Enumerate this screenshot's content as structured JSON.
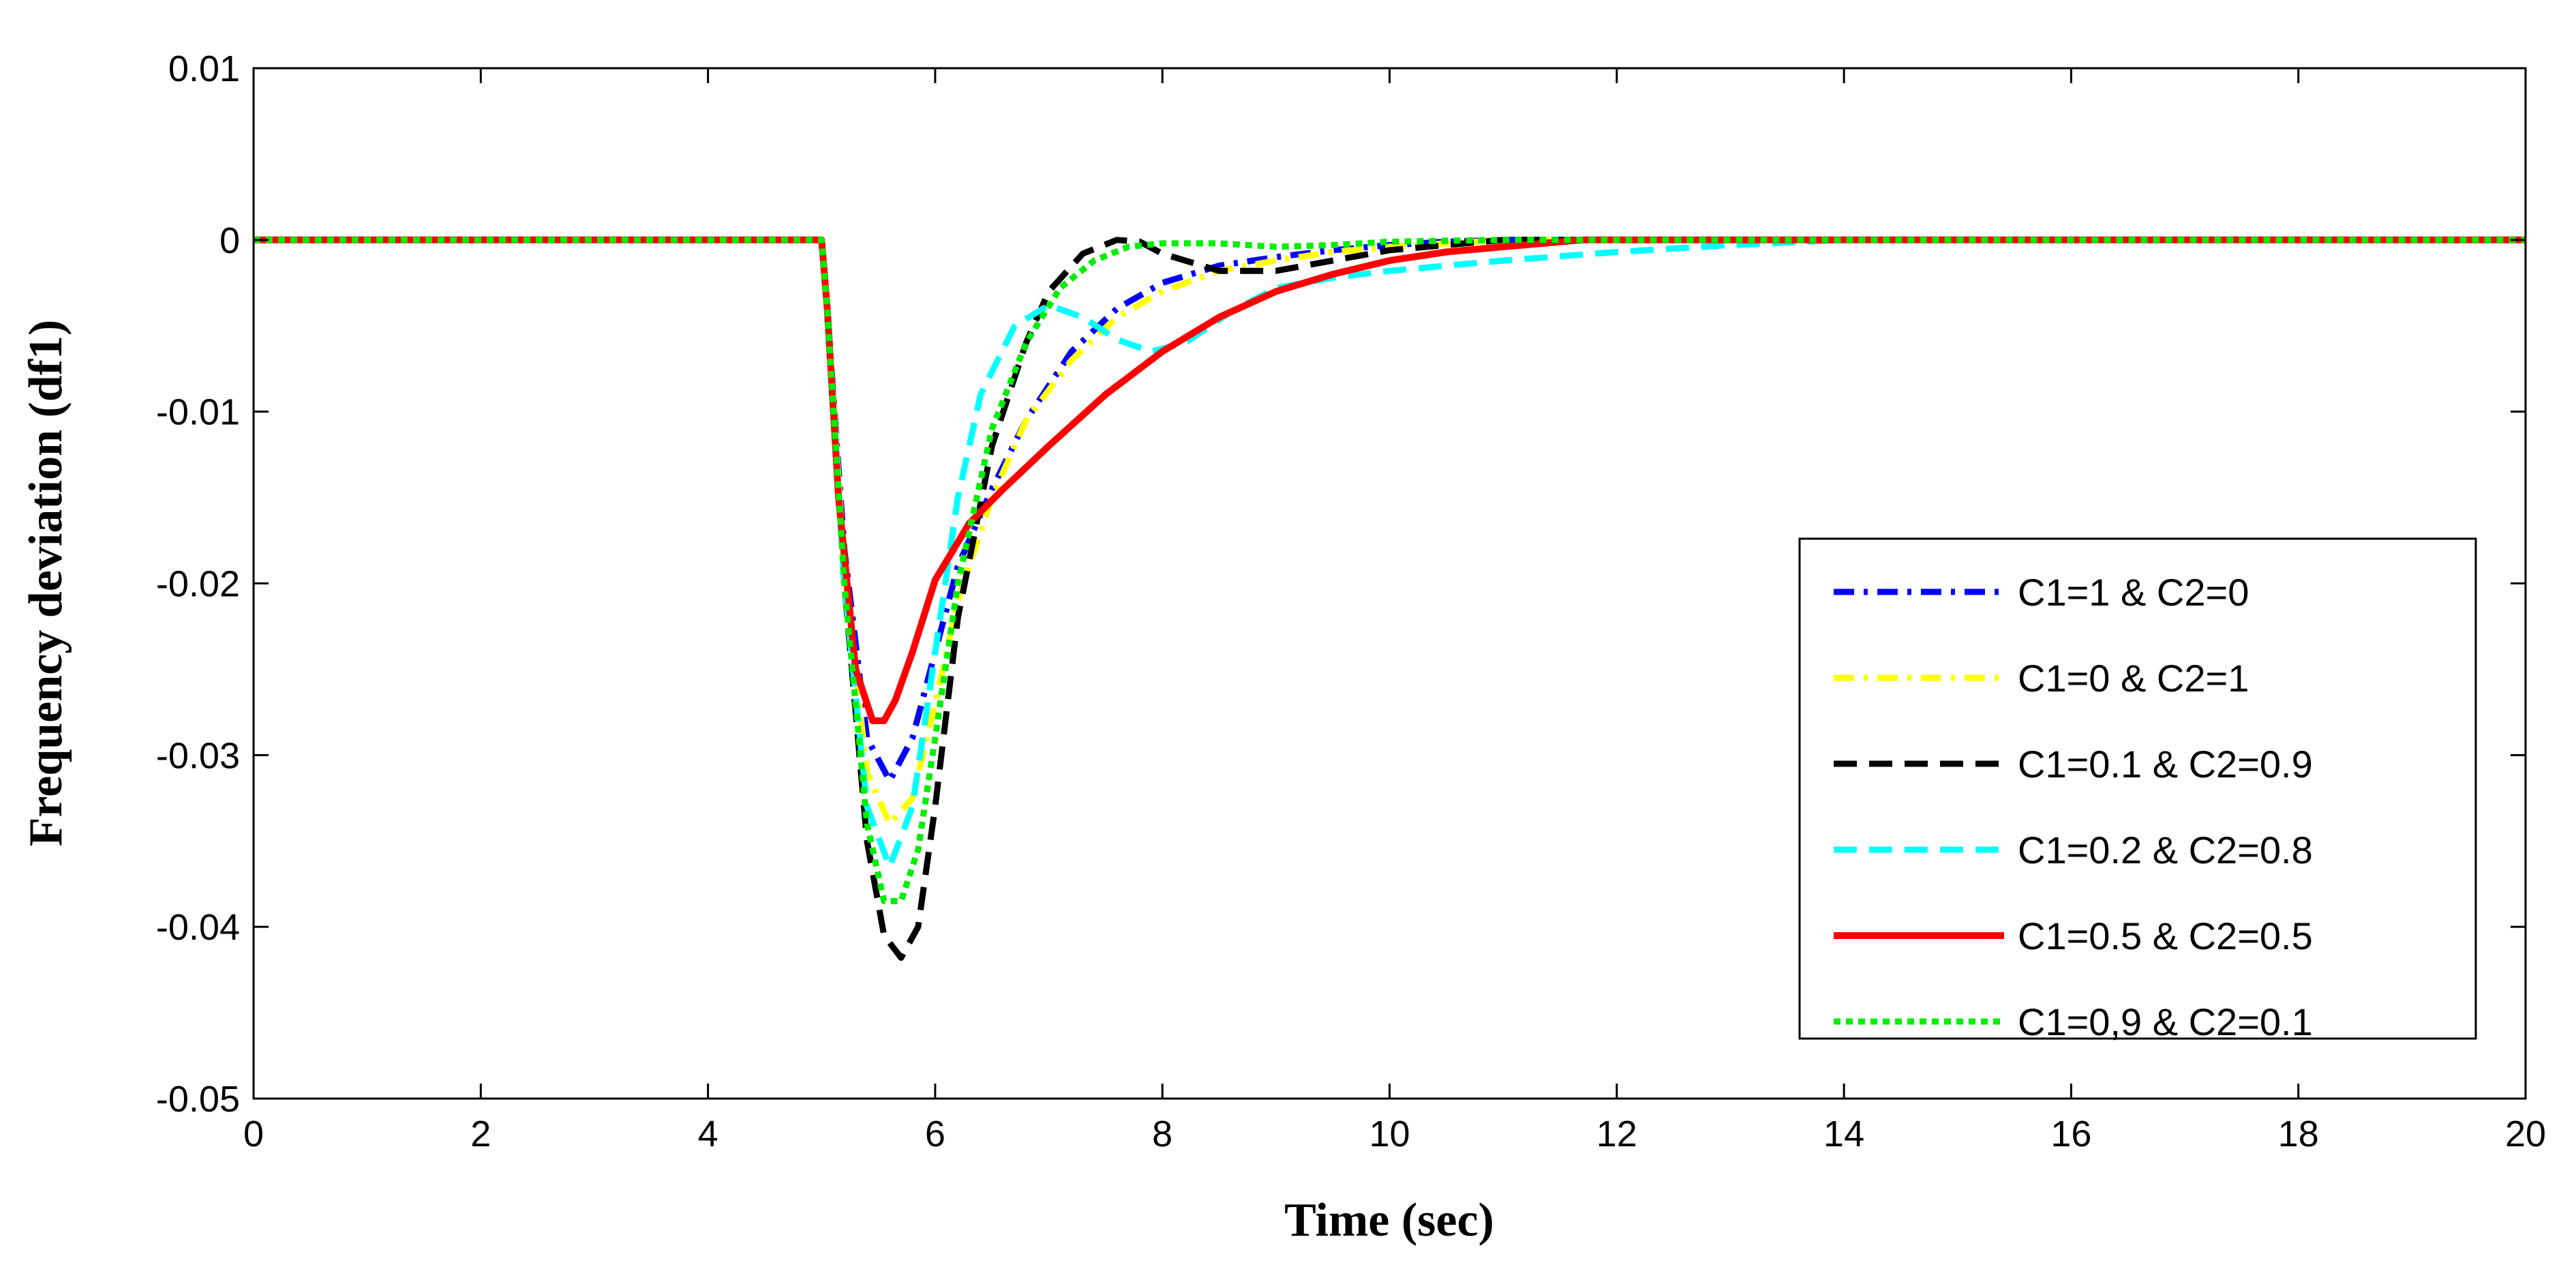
{
  "chart_data": {
    "type": "line",
    "title": "",
    "xlabel": "Time (sec)",
    "ylabel": "Frequency deviation (df1)",
    "xlim": [
      0,
      20
    ],
    "ylim": [
      -0.05,
      0.01
    ],
    "xticks": [
      0,
      2,
      4,
      6,
      8,
      10,
      12,
      14,
      16,
      18,
      20
    ],
    "xtick_labels": [
      "0",
      "2",
      "4",
      "6",
      "8",
      "10",
      "12",
      "14",
      "16",
      "18",
      "20"
    ],
    "yticks": [
      0.01,
      0,
      -0.01,
      -0.02,
      -0.03,
      -0.04,
      -0.05
    ],
    "ytick_labels": [
      "0.01",
      "0",
      "-0.01",
      "-0.02",
      "-0.03",
      "-0.04",
      "-0.05"
    ],
    "grid": false,
    "legend_position": "bottom-right",
    "series": [
      {
        "name": "C1=1 & C2=0",
        "color": "#0000ff",
        "style": "dashdot",
        "x": [
          0,
          5.0,
          5.05,
          5.2,
          5.4,
          5.6,
          5.8,
          6.0,
          6.2,
          6.5,
          6.8,
          7.2,
          7.6,
          8.0,
          8.5,
          9.0,
          9.5,
          10.0,
          10.5,
          11.0,
          20
        ],
        "y": [
          0,
          0,
          -0.004,
          -0.018,
          -0.029,
          -0.0315,
          -0.029,
          -0.024,
          -0.019,
          -0.0145,
          -0.0105,
          -0.0065,
          -0.004,
          -0.0025,
          -0.0015,
          -0.001,
          -0.0006,
          -0.0003,
          -0.0001,
          0,
          0
        ]
      },
      {
        "name": "C1=0 & C2=1",
        "color": "#ffff00",
        "style": "dashdot",
        "x": [
          0,
          5.0,
          5.05,
          5.2,
          5.4,
          5.6,
          5.8,
          6.0,
          6.2,
          6.5,
          6.8,
          7.2,
          7.6,
          8.0,
          8.5,
          9.0,
          9.5,
          10.0,
          10.5,
          11.0,
          20
        ],
        "y": [
          0,
          0,
          -0.004,
          -0.019,
          -0.031,
          -0.034,
          -0.0325,
          -0.027,
          -0.021,
          -0.015,
          -0.0105,
          -0.007,
          -0.0045,
          -0.003,
          -0.0018,
          -0.0012,
          -0.0007,
          -0.0004,
          -0.0002,
          0,
          0
        ]
      },
      {
        "name": "C1=0.1 & C2=0.9",
        "color": "#000000",
        "style": "dashed",
        "x": [
          0,
          5.0,
          5.05,
          5.2,
          5.4,
          5.55,
          5.7,
          5.85,
          6.0,
          6.2,
          6.5,
          6.8,
          7.0,
          7.3,
          7.6,
          7.8,
          8.0,
          8.5,
          9.0,
          9.5,
          10.0,
          11.0,
          20
        ],
        "y": [
          0,
          0,
          -0.004,
          -0.02,
          -0.035,
          -0.0405,
          -0.0418,
          -0.04,
          -0.033,
          -0.022,
          -0.012,
          -0.006,
          -0.003,
          -0.0008,
          0,
          -0.0001,
          -0.0008,
          -0.0018,
          -0.0018,
          -0.0012,
          -0.0006,
          0,
          0
        ]
      },
      {
        "name": "C1=0.2 & C2=0.8",
        "color": "#00ffff",
        "style": "dashed",
        "x": [
          0,
          5.0,
          5.05,
          5.2,
          5.4,
          5.6,
          5.8,
          6.0,
          6.2,
          6.4,
          6.7,
          7.0,
          7.3,
          7.6,
          7.9,
          8.2,
          8.6,
          9.0,
          9.5,
          10.0,
          11.0,
          12.0,
          13.0,
          14.0,
          20
        ],
        "y": [
          0,
          0,
          -0.004,
          -0.02,
          -0.033,
          -0.0365,
          -0.033,
          -0.024,
          -0.015,
          -0.009,
          -0.005,
          -0.0038,
          -0.0045,
          -0.0058,
          -0.0065,
          -0.006,
          -0.0042,
          -0.0028,
          -0.0022,
          -0.0018,
          -0.0012,
          -0.0007,
          -0.0003,
          0,
          0
        ]
      },
      {
        "name": "C1=0.5 & C2=0.5",
        "color": "#ff0000",
        "style": "solid",
        "x": [
          0,
          5.0,
          5.05,
          5.15,
          5.3,
          5.45,
          5.55,
          5.65,
          5.8,
          6.0,
          6.3,
          6.6,
          7.0,
          7.5,
          8.0,
          8.5,
          9.0,
          9.5,
          10.0,
          10.5,
          11.0,
          11.7,
          20
        ],
        "y": [
          0,
          0,
          -0.004,
          -0.015,
          -0.025,
          -0.028,
          -0.028,
          -0.0268,
          -0.024,
          -0.0198,
          -0.0165,
          -0.0145,
          -0.012,
          -0.009,
          -0.0065,
          -0.0045,
          -0.003,
          -0.002,
          -0.0012,
          -0.0007,
          -0.0004,
          0,
          0
        ]
      },
      {
        "name": "C1=0,9 & C2=0.1",
        "color": "#00ee00",
        "style": "dotted",
        "x": [
          0,
          5.0,
          5.05,
          5.2,
          5.4,
          5.55,
          5.7,
          5.85,
          6.0,
          6.2,
          6.5,
          6.8,
          7.1,
          7.4,
          7.7,
          8.0,
          8.5,
          9.0,
          9.5,
          10.0,
          11.0,
          20
        ],
        "y": [
          0,
          0,
          -0.004,
          -0.02,
          -0.034,
          -0.0385,
          -0.0385,
          -0.0355,
          -0.029,
          -0.02,
          -0.011,
          -0.006,
          -0.0028,
          -0.0012,
          -0.0004,
          -0.0002,
          -0.0002,
          -0.0004,
          -0.0003,
          -0.0001,
          0,
          0
        ]
      }
    ]
  }
}
